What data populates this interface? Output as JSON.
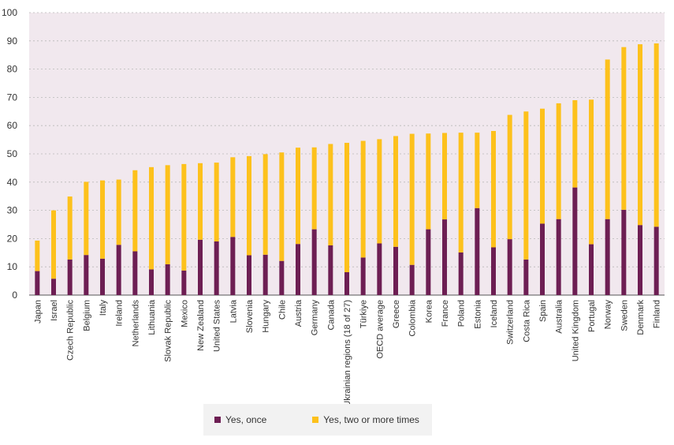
{
  "chart_data": {
    "type": "bar",
    "stacked": true,
    "categories": [
      "Japan",
      "Israel",
      "Czech Republic",
      "Belgium",
      "Italy",
      "Ireland",
      "Netherlands",
      "Lithuania",
      "Slovak Republic",
      "Mexico",
      "New Zealand",
      "United States",
      "Latvia",
      "Slovenia",
      "Hungary",
      "Chile",
      "Austria",
      "Germany",
      "Canada",
      "Ukrainian regions (18 of 27)",
      "Türkiye",
      "OECD average",
      "Greece",
      "Colombia",
      "Korea",
      "France",
      "Poland",
      "Estonia",
      "Iceland",
      "Switzerland",
      "Costa Rica",
      "Spain",
      "Australia",
      "United Kingdom",
      "Portugal",
      "Norway",
      "Sweden",
      "Denmark",
      "Finland"
    ],
    "series": [
      {
        "name": "Yes, once",
        "color": "#6d1e53",
        "values": [
          8.5,
          5.8,
          12.6,
          14.2,
          12.9,
          17.8,
          15.5,
          9.1,
          10.9,
          8.7,
          19.6,
          19.0,
          20.6,
          14.1,
          14.3,
          12.1,
          18.1,
          23.3,
          17.6,
          8.1,
          13.3,
          18.3,
          17.1,
          10.7,
          23.3,
          26.8,
          15.1,
          30.8,
          16.9,
          19.8,
          12.6,
          25.3,
          26.9,
          38.1,
          18.0,
          26.9,
          30.2,
          24.8,
          24.2
        ]
      },
      {
        "name": "Yes, two or more times",
        "color": "#fdc11c",
        "values": [
          10.8,
          24.2,
          22.3,
          25.9,
          27.7,
          23.1,
          28.7,
          36.2,
          35.1,
          37.7,
          27.1,
          27.9,
          28.2,
          35.1,
          35.6,
          38.4,
          34.1,
          29.0,
          35.9,
          45.8,
          41.3,
          36.9,
          39.2,
          46.4,
          33.9,
          30.6,
          42.4,
          26.7,
          41.2,
          44.0,
          52.4,
          40.7,
          41.0,
          30.9,
          51.2,
          56.5,
          57.6,
          64.0,
          64.9
        ]
      }
    ],
    "ylim": [
      0,
      100
    ],
    "yticks": [
      0,
      10,
      20,
      30,
      40,
      50,
      60,
      70,
      80,
      90,
      100
    ],
    "grid": true,
    "legend_placement": "bottom-center",
    "background_color": "#f1e8ee"
  }
}
